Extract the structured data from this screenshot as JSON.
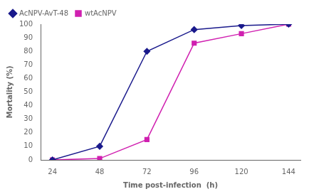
{
  "chart_data": {
    "type": "line",
    "xlabel": "Time post-infection  (h)",
    "ylabel": "Mortality (%)",
    "x": [
      24,
      48,
      72,
      96,
      120,
      144
    ],
    "series": [
      {
        "name": "AcNPV-AvT-48",
        "color": "#1a1a8c",
        "marker": "D",
        "values": [
          0,
          10,
          80,
          96,
          99,
          100
        ]
      },
      {
        "name": "wtAcNPV",
        "color": "#d020b0",
        "marker": "s",
        "values": [
          0,
          1,
          15,
          86,
          93,
          100
        ]
      }
    ],
    "xlim": [
      18,
      150
    ],
    "ylim": [
      0,
      100
    ],
    "xticks": [
      24,
      48,
      72,
      96,
      120,
      144
    ],
    "yticks": [
      0,
      10,
      20,
      30,
      40,
      50,
      60,
      70,
      80,
      90,
      100
    ],
    "grid": false,
    "legend": "upper left"
  }
}
